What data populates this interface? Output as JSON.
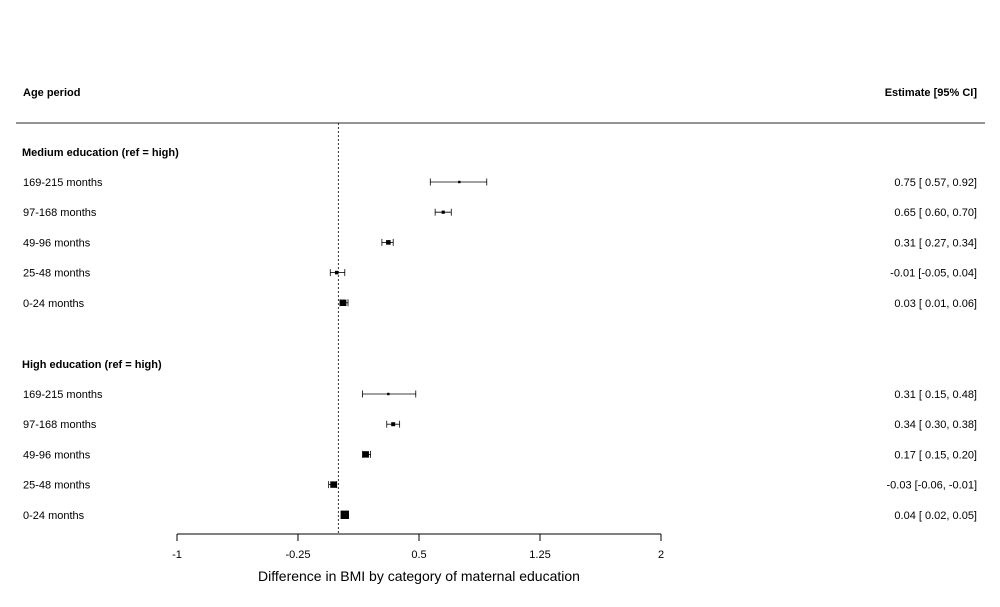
{
  "chart_data": {
    "type": "forest",
    "header_left": "Age period",
    "header_right": "Estimate [95% CI]",
    "xlabel": "Difference in BMI by category of maternal education",
    "xlim": [
      -1,
      2
    ],
    "xticks": [
      "-1",
      "-0.25",
      "0.5",
      "1.25",
      "2"
    ],
    "reference_line": 0,
    "groups": [
      {
        "name": "Medium education (ref = high)",
        "rows": [
          {
            "label": "169-215 months",
            "estimate": 0.75,
            "lower": 0.57,
            "upper": 0.92,
            "text": "0.75 [ 0.57,  0.92]"
          },
          {
            "label": "97-168 months",
            "estimate": 0.65,
            "lower": 0.6,
            "upper": 0.7,
            "text": "0.65 [ 0.60,  0.70]"
          },
          {
            "label": "49-96 months",
            "estimate": 0.31,
            "lower": 0.27,
            "upper": 0.34,
            "text": "0.31 [ 0.27,  0.34]"
          },
          {
            "label": "25-48 months",
            "estimate": -0.01,
            "lower": -0.05,
            "upper": 0.04,
            "text": "-0.01 [-0.05,  0.04]"
          },
          {
            "label": "0-24 months",
            "estimate": 0.03,
            "lower": 0.01,
            "upper": 0.06,
            "text": "0.03 [ 0.01,  0.06]"
          }
        ]
      },
      {
        "name": "High education (ref = high)",
        "rows": [
          {
            "label": "169-215 months",
            "estimate": 0.31,
            "lower": 0.15,
            "upper": 0.48,
            "text": "0.31 [ 0.15,  0.48]"
          },
          {
            "label": "97-168 months",
            "estimate": 0.34,
            "lower": 0.3,
            "upper": 0.38,
            "text": "0.34 [ 0.30,  0.38]"
          },
          {
            "label": "49-96 months",
            "estimate": 0.17,
            "lower": 0.15,
            "upper": 0.2,
            "text": "0.17 [ 0.15,  0.20]"
          },
          {
            "label": "25-48 months",
            "estimate": -0.03,
            "lower": -0.06,
            "upper": -0.01,
            "text": "-0.03 [-0.06, -0.01]"
          },
          {
            "label": "0-24 months",
            "estimate": 0.04,
            "lower": 0.02,
            "upper": 0.05,
            "text": "0.04 [ 0.02,  0.05]"
          }
        ]
      }
    ]
  }
}
